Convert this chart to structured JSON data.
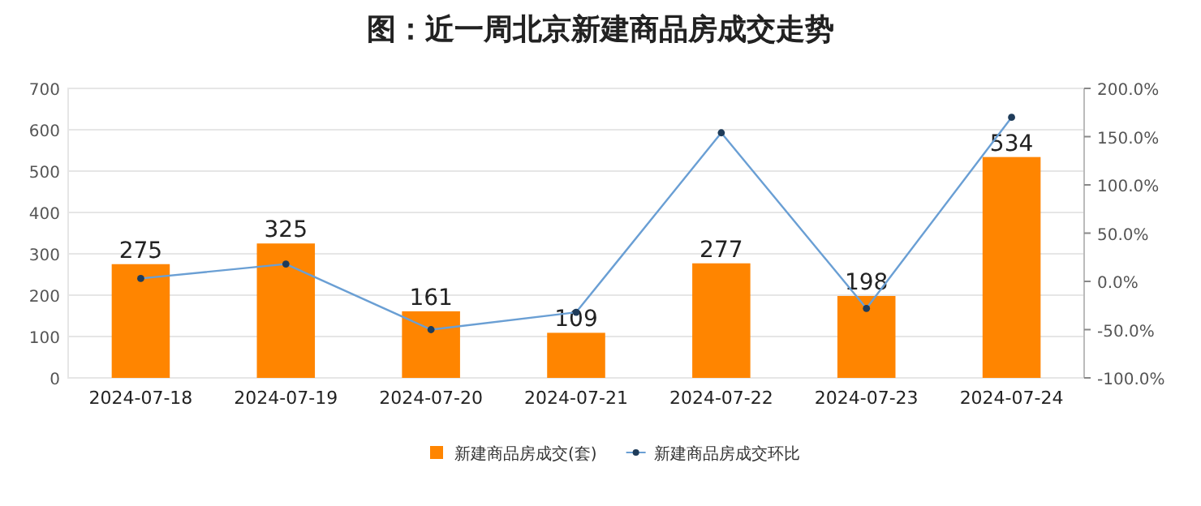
{
  "chart_data": {
    "type": "bar",
    "title": "图：近一周北京新建商品房成交走势",
    "categories": [
      "2024-07-18",
      "2024-07-19",
      "2024-07-20",
      "2024-07-21",
      "2024-07-22",
      "2024-07-23",
      "2024-07-24"
    ],
    "series": [
      {
        "name": "新建商品房成交(套)",
        "color": "#ff8500",
        "values": [
          275,
          325,
          161,
          109,
          277,
          198,
          534
        ],
        "value_labels": [
          "275",
          "325",
          "161",
          "109",
          "277",
          "198",
          "534"
        ]
      },
      {
        "name": "新建商品房成交环比",
        "type": "line",
        "axis": "y2",
        "color": "#6a9fd4",
        "marker": "circle",
        "values": [
          3,
          18,
          -50,
          -32,
          154,
          -28,
          170
        ]
      }
    ],
    "ylim": [
      0,
      700
    ],
    "yticks": [
      0,
      100,
      200,
      300,
      400,
      500,
      600,
      700
    ],
    "y2lim": [
      -100,
      200
    ],
    "y2ticks": [
      {
        "value": -100,
        "label": "-100.0%"
      },
      {
        "value": -50,
        "label": "-50.0%"
      },
      {
        "value": 0,
        "label": "0.0%"
      },
      {
        "value": 50,
        "label": "50.0%"
      },
      {
        "value": 100,
        "label": "100.0%"
      },
      {
        "value": 150,
        "label": "150.0%"
      },
      {
        "value": 200,
        "label": "200.0%"
      }
    ],
    "grid": "y",
    "legend": "bottom"
  }
}
